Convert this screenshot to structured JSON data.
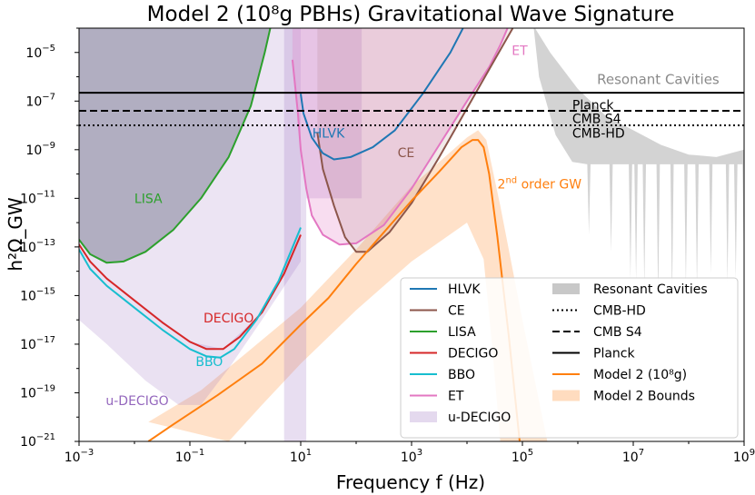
{
  "chart_data": {
    "type": "line",
    "title": "Model 2 (10⁸g PBHs) Gravitational Wave Signature",
    "xlabel": "Frequency f (Hz)",
    "ylabel": "h²Ω_GW",
    "x_scale": "log",
    "y_scale": "log",
    "xlim": [
      0.001,
      1000000000
    ],
    "ylim": [
      1e-21,
      0.0001
    ],
    "x_ticks": [
      {
        "exp": -3,
        "label": "10"
      },
      {
        "exp": -1,
        "label": "10"
      },
      {
        "exp": 1,
        "label": "10"
      },
      {
        "exp": 3,
        "label": "10"
      },
      {
        "exp": 5,
        "label": "10"
      },
      {
        "exp": 7,
        "label": "10"
      },
      {
        "exp": 9,
        "label": "10"
      }
    ],
    "x_tick_exponents": [
      "−3",
      "−1",
      "1",
      "3",
      "5",
      "7",
      "9"
    ],
    "y_ticks": [
      {
        "exp": -21,
        "label": "10"
      },
      {
        "exp": -19,
        "label": "10"
      },
      {
        "exp": -17,
        "label": "10"
      },
      {
        "exp": -15,
        "label": "10"
      },
      {
        "exp": -13,
        "label": "10"
      },
      {
        "exp": -11,
        "label": "10"
      },
      {
        "exp": -9,
        "label": "10"
      },
      {
        "exp": -7,
        "label": "10"
      },
      {
        "exp": -5,
        "label": "10"
      }
    ],
    "y_tick_exponents": [
      "−21",
      "−19",
      "−17",
      "−15",
      "−13",
      "−11",
      "−9",
      "−7",
      "−5"
    ],
    "colors": {
      "HLVK": "#1f77b4",
      "CE": "#8c564b",
      "LISA": "#2ca02c",
      "DECIGO": "#d62728",
      "BBO": "#17becf",
      "ET": "#e377c2",
      "uDECIGO": "#9467bd",
      "Model2": "#ff7f0e",
      "bounds": "#ffdcbf",
      "cavities": "#c8c8c8"
    },
    "horizontal_lines": [
      {
        "name": "Planck",
        "value": 2.2e-07,
        "style": "solid"
      },
      {
        "name": "CMB S4",
        "value": 4e-08,
        "style": "dashed"
      },
      {
        "name": "CMB-HD",
        "value": 1e-08,
        "style": "dotted"
      }
    ],
    "series": [
      {
        "name": "LISA",
        "log_points": [
          [
            -3,
            -12.7
          ],
          [
            -2.8,
            -13.3
          ],
          [
            -2.5,
            -13.65
          ],
          [
            -2.2,
            -13.6
          ],
          [
            -1.8,
            -13.2
          ],
          [
            -1.3,
            -12.3
          ],
          [
            -0.8,
            -11.0
          ],
          [
            -0.3,
            -9.3
          ],
          [
            0.1,
            -7.2
          ],
          [
            0.35,
            -5.0
          ],
          [
            0.46,
            -3.9
          ]
        ]
      },
      {
        "name": "DECIGO",
        "log_points": [
          [
            -3,
            -12.9
          ],
          [
            -2.8,
            -13.6
          ],
          [
            -2.5,
            -14.3
          ],
          [
            -2.0,
            -15.2
          ],
          [
            -1.5,
            -16.1
          ],
          [
            -1.0,
            -16.9
          ],
          [
            -0.7,
            -17.2
          ],
          [
            -0.4,
            -17.2
          ],
          [
            -0.1,
            -16.7
          ],
          [
            0.3,
            -15.7
          ],
          [
            0.7,
            -14.1
          ],
          [
            1.0,
            -12.5
          ]
        ]
      },
      {
        "name": "BBO",
        "log_points": [
          [
            -3,
            -13.1
          ],
          [
            -2.8,
            -13.9
          ],
          [
            -2.5,
            -14.6
          ],
          [
            -2.0,
            -15.5
          ],
          [
            -1.5,
            -16.4
          ],
          [
            -1.0,
            -17.2
          ],
          [
            -0.7,
            -17.5
          ],
          [
            -0.45,
            -17.55
          ],
          [
            -0.2,
            -17.2
          ],
          [
            0.2,
            -16.0
          ],
          [
            0.6,
            -14.4
          ],
          [
            1.0,
            -12.2
          ]
        ]
      },
      {
        "name": "ET",
        "log_points": [
          [
            0.85,
            -5.3
          ],
          [
            0.95,
            -7.5
          ],
          [
            1.0,
            -9.0
          ],
          [
            1.1,
            -10.6
          ],
          [
            1.2,
            -11.7
          ],
          [
            1.4,
            -12.5
          ],
          [
            1.7,
            -12.9
          ],
          [
            2.0,
            -12.85
          ],
          [
            2.5,
            -12.1
          ],
          [
            3.0,
            -10.6
          ],
          [
            3.5,
            -8.8
          ],
          [
            4.0,
            -7.0
          ],
          [
            4.4,
            -5.6
          ],
          [
            4.6,
            -4.7
          ],
          [
            4.75,
            -3.9
          ]
        ]
      },
      {
        "name": "CE",
        "log_points": [
          [
            1.3,
            -8.3
          ],
          [
            1.4,
            -9.8
          ],
          [
            1.6,
            -11.3
          ],
          [
            1.8,
            -12.6
          ],
          [
            2.0,
            -13.2
          ],
          [
            2.2,
            -13.2
          ],
          [
            2.6,
            -12.4
          ],
          [
            3.0,
            -11.2
          ],
          [
            3.5,
            -9.3
          ],
          [
            4.0,
            -7.3
          ],
          [
            4.5,
            -5.3
          ],
          [
            4.85,
            -3.9
          ]
        ]
      },
      {
        "name": "HLVK",
        "log_points": [
          [
            1.0,
            -6.7
          ],
          [
            1.05,
            -7.5
          ],
          [
            1.2,
            -8.5
          ],
          [
            1.4,
            -9.15
          ],
          [
            1.6,
            -9.4
          ],
          [
            1.9,
            -9.3
          ],
          [
            2.3,
            -8.9
          ],
          [
            2.7,
            -8.2
          ],
          [
            3.2,
            -6.7
          ],
          [
            3.7,
            -5.0
          ],
          [
            3.95,
            -3.9
          ]
        ]
      },
      {
        "name": "Model 2 (10⁸g)",
        "log_points": [
          [
            -1.75,
            -21.0
          ],
          [
            -1.3,
            -20.3
          ],
          [
            -0.5,
            -19.1
          ],
          [
            0.3,
            -17.8
          ],
          [
            1.0,
            -16.2
          ],
          [
            1.5,
            -15.1
          ],
          [
            2.0,
            -13.7
          ],
          [
            2.5,
            -12.4
          ],
          [
            3.0,
            -11.1
          ],
          [
            3.5,
            -9.9
          ],
          [
            3.9,
            -8.9
          ],
          [
            4.1,
            -8.6
          ],
          [
            4.2,
            -8.6
          ],
          [
            4.3,
            -8.9
          ],
          [
            4.4,
            -10.0
          ],
          [
            4.55,
            -12.6
          ],
          [
            4.75,
            -16.6
          ],
          [
            4.95,
            -21.0
          ]
        ]
      }
    ],
    "bands": [
      {
        "name": "u-DECIGO",
        "log_upper": [
          [
            -3,
            -12.9
          ],
          [
            -2.8,
            -13.6
          ],
          [
            -2.5,
            -14.3
          ],
          [
            -1.0,
            -16.9
          ],
          [
            -0.4,
            -17.2
          ],
          [
            0.3,
            -15.7
          ],
          [
            1.0,
            -12.5
          ]
        ],
        "log_lower": [
          [
            1.0,
            -13.6
          ],
          [
            0.3,
            -16.0
          ],
          [
            -0.3,
            -18.0
          ],
          [
            -0.8,
            -19.5
          ],
          [
            -1.2,
            -19.5
          ],
          [
            -1.8,
            -18.5
          ],
          [
            -2.5,
            -17.0
          ],
          [
            -3,
            -16.0
          ]
        ]
      },
      {
        "name": "Model 2 Bounds",
        "log_upper": [
          [
            -1.75,
            -20.2
          ],
          [
            -0.8,
            -18.9
          ],
          [
            0.0,
            -17.4
          ],
          [
            1.0,
            -15.5
          ],
          [
            2.0,
            -13.1
          ],
          [
            3.0,
            -10.5
          ],
          [
            3.6,
            -9.3
          ],
          [
            4.0,
            -8.5
          ],
          [
            4.2,
            -8.2
          ],
          [
            4.35,
            -8.6
          ],
          [
            4.6,
            -11.3
          ],
          [
            5.0,
            -16.0
          ],
          [
            5.45,
            -21.0
          ]
        ],
        "log_lower": [
          [
            4.6,
            -21.0
          ],
          [
            4.45,
            -17.0
          ],
          [
            4.3,
            -13.5
          ],
          [
            4.0,
            -12.0
          ],
          [
            3.0,
            -13.6
          ],
          [
            2.0,
            -15.6
          ],
          [
            1.0,
            -17.8
          ],
          [
            0.3,
            -19.5
          ],
          [
            -0.3,
            -21.0
          ]
        ]
      }
    ],
    "vertical_bands": [
      {
        "log_x_range": [
          0.7,
          1.1
        ],
        "value_range": [
          1e-21,
          0.0001
        ],
        "color": "#9467bd"
      },
      {
        "log_x_range": [
          1.1,
          2.1
        ],
        "value_range": [
          1e-11,
          0.0001
        ],
        "color": "#9467bd"
      }
    ],
    "resonant_cavities": {
      "log_top": [
        [
          5.2,
          -3.9
        ],
        [
          5.5,
          -5.0
        ],
        [
          6.0,
          -6.5
        ],
        [
          6.5,
          -7.6
        ],
        [
          7.0,
          -8.2
        ],
        [
          7.5,
          -8.8
        ],
        [
          8.0,
          -9.2
        ],
        [
          8.5,
          -9.3
        ],
        [
          9.0,
          -9.0
        ]
      ],
      "spikes_log": [
        [
          6.2,
          -12.5
        ],
        [
          6.6,
          -13.2
        ],
        [
          6.95,
          -14.3
        ],
        [
          7.05,
          -14.4
        ],
        [
          7.2,
          -14.7
        ],
        [
          7.45,
          -15.2
        ],
        [
          7.7,
          -15.1
        ],
        [
          7.95,
          -14.6
        ],
        [
          8.15,
          -14.7
        ],
        [
          8.4,
          -14.1
        ],
        [
          8.7,
          -14.5
        ],
        [
          8.85,
          -14.3
        ],
        [
          9.0,
          -14.0
        ]
      ]
    },
    "annotations": {
      "resonant_cavities": "Resonant Cavities",
      "planck": "Planck",
      "cmb_s4": "CMB S4",
      "cmb_hd": "CMB-HD",
      "hlvk": "HLVK",
      "ce": "CE",
      "et": "ET",
      "lisa": "LISA",
      "decigo": "DECIGO",
      "bbo": "BBO",
      "u_decigo": "u-DECIGO",
      "second_order_sup": "nd",
      "second_order_num": "2",
      "second_order_rest": " order GW"
    },
    "legend": {
      "placement": "lower-right",
      "left_column": [
        "HLVK",
        "CE",
        "LISA",
        "DECIGO",
        "BBO",
        "ET",
        "u-DECIGO"
      ],
      "right_column": [
        "Resonant Cavities",
        "CMB-HD",
        "CMB S4",
        "Planck",
        "Model 2 (10⁸g)",
        "Model 2 Bounds"
      ]
    }
  }
}
